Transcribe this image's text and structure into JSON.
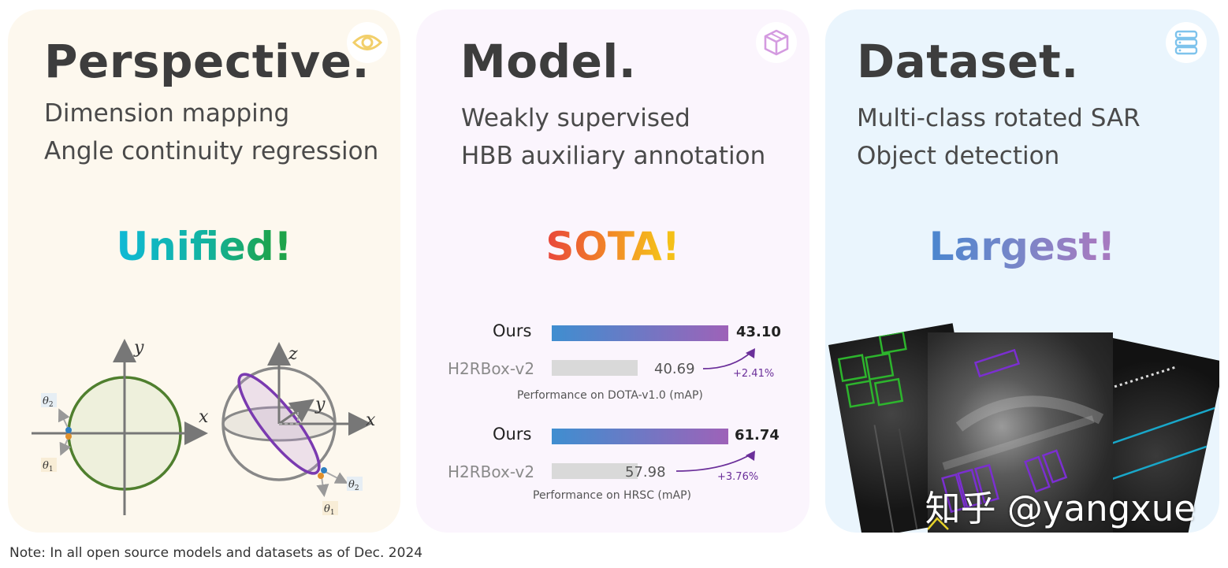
{
  "perspective": {
    "title": "Perspective.",
    "lines": [
      "Dimension mapping",
      "Angle continuity regression"
    ],
    "slogan": "Unified",
    "exclaim": "!",
    "icon": "eye-icon",
    "diagram2d": {
      "y": "y",
      "x": "x",
      "theta2": "θ",
      "theta2_sub": "2",
      "theta1": "θ",
      "theta1_sub": "1"
    },
    "diagram3d": {
      "z": "z",
      "y": "y",
      "x": "x",
      "theta2": "θ",
      "theta2_sub": "2",
      "theta1": "θ",
      "theta1_sub": "1"
    }
  },
  "model": {
    "title": "Model.",
    "lines": [
      "Weakly supervised",
      "HBB auxiliary annotation"
    ],
    "slogan": "SOTA",
    "exclaim": "!",
    "icon": "cube-icon"
  },
  "dataset": {
    "title": "Dataset.",
    "lines": [
      "Multi-class rotated SAR",
      "Object detection"
    ],
    "slogan": "Largest",
    "exclaim": "!",
    "icon": "database-icon",
    "watermark": "知乎 @yangxue"
  },
  "chart_data": [
    {
      "type": "bar",
      "orientation": "horizontal",
      "title": "Performance on DOTA-v1.0 (mAP)",
      "categories": [
        "Ours",
        "H2RBox-v2"
      ],
      "values": [
        43.1,
        40.69
      ],
      "value_labels": [
        "43.10",
        "40.69"
      ],
      "annotation": "+2.41%"
    },
    {
      "type": "bar",
      "orientation": "horizontal",
      "title": "Performance on HRSC (mAP)",
      "categories": [
        "Ours",
        "H2RBox-v2"
      ],
      "values": [
        61.74,
        57.98
      ],
      "value_labels": [
        "61.74",
        "57.98"
      ],
      "annotation": "+3.76%"
    }
  ],
  "note": "Note: In all open source models and datasets as of Dec. 2024",
  "colors": {
    "perspective_bg": "#fdf8ee",
    "model_bg": "#fbf5fd",
    "dataset_bg": "#eaf5fd",
    "circle_green": "#4f7f2e",
    "ellipse_purple": "#7a3ab0",
    "box_green": "#2db52d",
    "box_purple": "#7b2fd0",
    "line_cyan": "#19a7c9"
  }
}
